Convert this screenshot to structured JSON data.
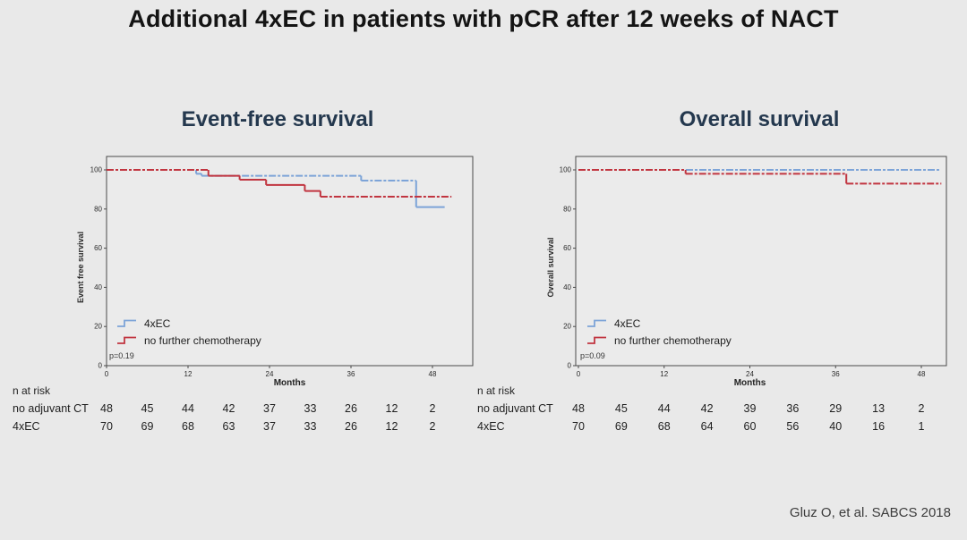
{
  "slide": {
    "title": "Additional 4xEC in patients with pCR after 12 weeks of NACT",
    "citation": "Gluz O, et al. SABCS 2018"
  },
  "colors": {
    "background": "#e9e9e9",
    "plot_fill": "#ebebeb",
    "frame": "#4a4a4a",
    "blue": "#7da4d8",
    "red": "#c13540",
    "heading_navy": "#24384e",
    "tick_text": "#2b2b2b"
  },
  "chart_data": [
    {
      "type": "line",
      "title": "Event-free survival",
      "ylabel": "Event free survival",
      "xlabel": "Months",
      "p_value": "p=0.19",
      "ylim": [
        0,
        107
      ],
      "xlim": [
        0,
        54
      ],
      "yticks": [
        0,
        20,
        40,
        60,
        80,
        100
      ],
      "xticks": [
        0,
        12,
        24,
        36,
        48
      ],
      "legend": [
        {
          "name": "4xEC",
          "color": "#7da4d8"
        },
        {
          "name": "no further chemotherapy",
          "color": "#c13540"
        }
      ],
      "series": [
        {
          "name": "4xEC",
          "color": "#7da4d8",
          "step_points": [
            [
              0,
              100
            ],
            [
              13.2,
              100
            ],
            [
              13.2,
              98
            ],
            [
              14,
              98
            ],
            [
              14,
              97
            ],
            [
              37.5,
              97
            ],
            [
              37.5,
              94.5
            ],
            [
              45.6,
              94.5
            ],
            [
              45.6,
              81
            ],
            [
              49.8,
              81
            ]
          ]
        },
        {
          "name": "no further chemotherapy",
          "color": "#c13540",
          "step_points": [
            [
              0,
              100
            ],
            [
              15,
              100
            ],
            [
              15,
              97
            ],
            [
              19.6,
              97
            ],
            [
              19.6,
              95
            ],
            [
              23.5,
              95
            ],
            [
              23.5,
              92.3
            ],
            [
              29.2,
              92.3
            ],
            [
              29.2,
              89.2
            ],
            [
              31.5,
              89.2
            ],
            [
              31.5,
              86.3
            ],
            [
              50.8,
              86.3
            ]
          ]
        }
      ],
      "risk_table": {
        "heading": "n at risk",
        "months": [
          0,
          6,
          12,
          18,
          24,
          30,
          36,
          42,
          48
        ],
        "rows": [
          {
            "label": "no adjuvant CT",
            "values": [
              "48",
              "45",
              "44",
              "42",
              "37",
              "33",
              "26",
              "12",
              "2"
            ]
          },
          {
            "label": "4xEC",
            "values": [
              "70",
              "69",
              "68",
              "63",
              "37",
              "33",
              "26",
              "12",
              "2"
            ]
          }
        ]
      }
    },
    {
      "type": "line",
      "title": "Overall survival",
      "ylabel": "Overall survival",
      "xlabel": "Months",
      "p_value": "p=0.09",
      "ylim": [
        0,
        107
      ],
      "xlim": [
        0,
        51.5
      ],
      "yticks": [
        0,
        20,
        40,
        60,
        80,
        100
      ],
      "xticks": [
        0,
        12,
        24,
        36,
        48
      ],
      "legend": [
        {
          "name": "4xEC",
          "color": "#7da4d8"
        },
        {
          "name": "no further chemotherapy",
          "color": "#c13540"
        }
      ],
      "series": [
        {
          "name": "4xEC",
          "color": "#7da4d8",
          "step_points": [
            [
              0,
              100
            ],
            [
              50.5,
              100
            ]
          ]
        },
        {
          "name": "no further chemotherapy",
          "color": "#c13540",
          "step_points": [
            [
              0,
              100
            ],
            [
              15,
              100
            ],
            [
              15,
              98
            ],
            [
              37.5,
              98
            ],
            [
              37.5,
              93
            ],
            [
              50.8,
              93
            ]
          ]
        }
      ],
      "risk_table": {
        "heading": "n at risk",
        "months": [
          0,
          6,
          12,
          18,
          24,
          30,
          36,
          42,
          48
        ],
        "rows": [
          {
            "label": "no adjuvant CT",
            "values": [
              "48",
              "45",
              "44",
              "42",
              "39",
              "36",
              "29",
              "13",
              "2"
            ]
          },
          {
            "label": "4xEC",
            "values": [
              "70",
              "69",
              "68",
              "64",
              "60",
              "56",
              "40",
              "16",
              "1"
            ]
          }
        ]
      }
    }
  ]
}
